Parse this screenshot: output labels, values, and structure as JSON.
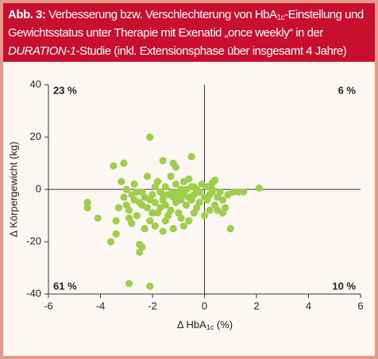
{
  "header": {
    "title_parts": [
      "Abb. 3:",
      " Verbesserung bzw. Verschlechterung von HbA",
      "1c",
      "-Einstellung und Gewichtsstatus unter Therapie mit Exenatid „once weekly“ in der ",
      "DURATION-1",
      "-Studie (inkl. Extensionsphase über insgesamt 4 Jahre)"
    ]
  },
  "chart_data": {
    "type": "scatter",
    "xlabel_parts": [
      "Δ HbA",
      "1c",
      " (%)"
    ],
    "ylabel": "Δ Körpergewicht (kg)",
    "xlim": [
      -6,
      6
    ],
    "ylim": [
      -40,
      40
    ],
    "xticks": [
      -6,
      -4,
      -2,
      0,
      2,
      4,
      6
    ],
    "yticks": [
      -40,
      -20,
      0,
      20,
      40
    ],
    "annotations": [
      {
        "text": "23 %",
        "position": "top-left"
      },
      {
        "text": "6 %",
        "position": "top-right"
      },
      {
        "text": "61 %",
        "position": "bottom-left"
      },
      {
        "text": "10 %",
        "position": "bottom-right"
      }
    ],
    "series": [
      {
        "color": "#9fcd4c",
        "x": [
          -2.1,
          -4.5,
          -4.5,
          -4.1,
          -3.6,
          -3.4,
          -2.9,
          -2.1,
          -2.5,
          -2.5,
          -2.4,
          2.1,
          1.0,
          -3.5,
          -3.1,
          -0.5,
          -1.2,
          -1.6,
          -1.1,
          0.4,
          0.3,
          -3.2,
          -3.1,
          -3.0,
          -2.9,
          -2.8,
          -2.7,
          -2.6,
          -2.5,
          -2.4,
          -2.3,
          -2.2,
          -2.1,
          -2.0,
          -1.9,
          -1.8,
          -1.7,
          -1.6,
          -1.5,
          -1.4,
          -1.3,
          -1.2,
          -1.1,
          -1.0,
          -0.9,
          -0.8,
          -0.7,
          -0.6,
          -0.5,
          -0.4,
          -0.3,
          -0.2,
          -0.1,
          0.0,
          0.1,
          0.2,
          0.3,
          0.4,
          0.5,
          0.6,
          0.7,
          0.8,
          0.9,
          1.1,
          1.3,
          -1.8,
          -2.2,
          -2.7,
          -1.5,
          -1.1,
          -0.8,
          -0.6,
          -1.9,
          -1.6,
          -1.2,
          -0.9,
          -0.6,
          -0.4,
          -2.3,
          -2.8,
          -3.3,
          -3.4,
          -1.4,
          -1.0,
          -0.2,
          0.2,
          0.0,
          -0.7,
          -1.7,
          -2.0,
          -2.6,
          -3.0,
          -1.3,
          -0.3,
          -0.5,
          -1.0,
          -2.4,
          -2.9,
          -1.5,
          -0.8,
          0.1,
          0.5,
          0.7,
          -1.9,
          -2.1,
          -1.6,
          -1.2,
          -0.9,
          -0.4,
          0.3,
          1.5
        ],
        "values": [
          20,
          -5,
          -7,
          -11,
          -20,
          -17,
          -36,
          -37,
          -21,
          -24,
          -22,
          0.5,
          -15,
          9,
          10,
          12.5,
          10,
          11,
          8.5,
          3.5,
          2.5,
          3,
          -3,
          -6,
          -8,
          -2,
          -4,
          -10,
          -5,
          -1,
          -3,
          -7,
          -12,
          -2,
          -5,
          -9,
          -1,
          -4,
          -6,
          -2,
          -8,
          -3,
          -5,
          -1,
          -4,
          -2,
          0,
          -3,
          1,
          -2,
          0,
          -1,
          2,
          -3,
          1,
          -2,
          0,
          -6,
          -8,
          -1,
          -4,
          -7,
          -2,
          -1,
          -1,
          3,
          5,
          2,
          1,
          2,
          3,
          4,
          -14,
          -16,
          -15,
          -11,
          -12,
          -9,
          -15,
          -13,
          -7,
          -12,
          -10,
          -9,
          -5,
          -8,
          -10,
          -6,
          -7,
          -9,
          -1,
          0,
          5,
          -7,
          -4,
          -3,
          -6,
          -11,
          -12,
          -14,
          -4,
          -3,
          -9,
          1,
          -4,
          -2,
          -1,
          0,
          1,
          -1,
          -1
        ]
      }
    ]
  }
}
